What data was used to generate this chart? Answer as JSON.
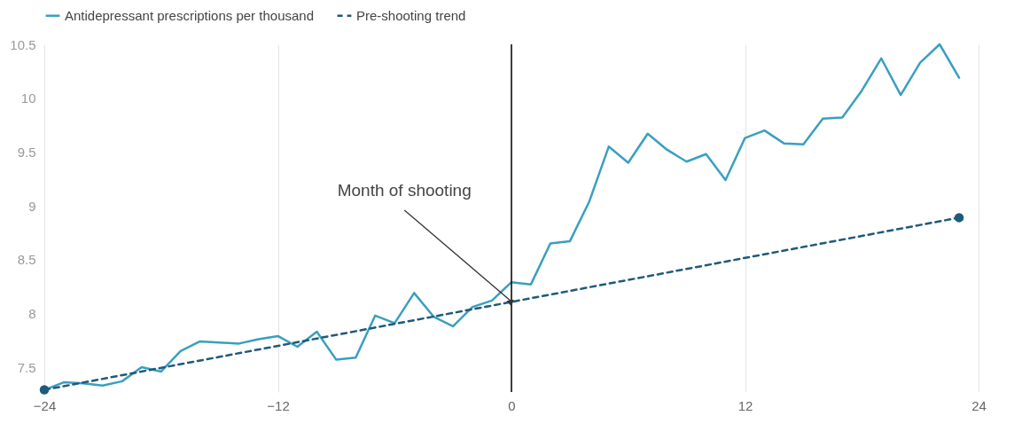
{
  "chart_data": {
    "type": "line",
    "x": [
      -24,
      -23,
      -22,
      -21,
      -20,
      -19,
      -18,
      -17,
      -16,
      -15,
      -14,
      -13,
      -12,
      -11,
      -10,
      -9,
      -8,
      -7,
      -6,
      -5,
      -4,
      -3,
      -2,
      -1,
      0,
      1,
      2,
      3,
      4,
      5,
      6,
      7,
      8,
      9,
      10,
      11,
      12,
      13,
      14,
      15,
      16,
      17,
      18,
      19,
      20,
      21,
      22,
      23
    ],
    "series": [
      {
        "name": "Antidepressant prescriptions per thousand",
        "color": "#3a9fc0",
        "line_style": "solid",
        "marker": "none",
        "values": [
          7.29,
          7.36,
          7.35,
          7.33,
          7.37,
          7.5,
          7.46,
          7.65,
          7.74,
          7.73,
          7.72,
          7.76,
          7.79,
          7.69,
          7.83,
          7.57,
          7.59,
          7.98,
          7.91,
          8.19,
          7.97,
          7.88,
          8.06,
          8.12,
          8.29,
          8.27,
          8.65,
          8.67,
          9.04,
          9.55,
          9.4,
          9.67,
          9.52,
          9.41,
          9.48,
          9.24,
          9.63,
          9.7,
          9.58,
          9.57,
          9.81,
          9.82,
          10.07,
          10.37,
          10.03,
          10.33,
          10.5,
          10.19
        ]
      },
      {
        "name": "Pre-shooting trend",
        "color": "#1f5a7a",
        "line_style": "dashed",
        "marker": "circle",
        "x": [
          -24,
          23
        ],
        "values": [
          7.29,
          8.89
        ]
      }
    ],
    "xlim": [
      -24,
      24
    ],
    "xticks": [
      -24,
      -12,
      0,
      12,
      24
    ],
    "ylim": [
      7.27,
      10.5
    ],
    "yticks": [
      7.5,
      8,
      8.5,
      9,
      9.5,
      10,
      10.5
    ],
    "grid": "x",
    "legend": "top left",
    "ref_lines": [
      {
        "axis": "x",
        "value": 0,
        "color": "#000000"
      }
    ],
    "annotations": [
      {
        "text": "Month of shooting",
        "x": 0,
        "y": 8.11
      }
    ]
  }
}
